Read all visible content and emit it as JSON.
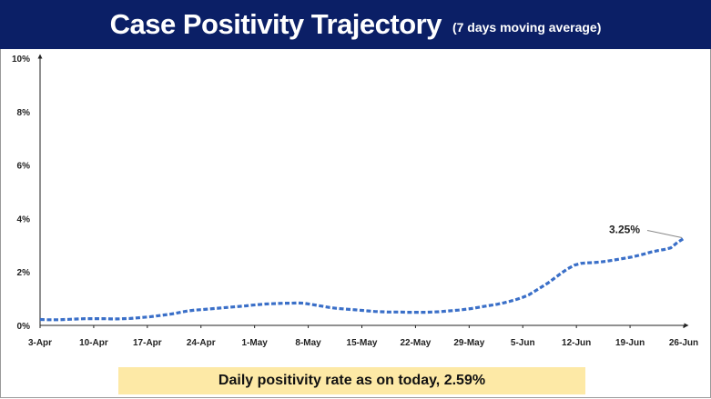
{
  "header": {
    "title": "Case Positivity Trajectory",
    "subtitle": "(7 days moving average)",
    "bg_color": "#0b1f66"
  },
  "chart_data": {
    "type": "line",
    "title": "Case Positivity Trajectory",
    "subtitle": "(7 days moving average)",
    "xlabel": "",
    "ylabel": "",
    "ylim": [
      0,
      10
    ],
    "y_ticks": [
      "0%",
      "2%",
      "4%",
      "6%",
      "8%",
      "10%"
    ],
    "x_ticks": [
      "3-Apr",
      "10-Apr",
      "17-Apr",
      "24-Apr",
      "1-May",
      "8-May",
      "15-May",
      "22-May",
      "29-May",
      "5-Jun",
      "12-Jun",
      "19-Jun",
      "26-Jun"
    ],
    "grid": false,
    "line_color": "#3a6fc8",
    "line_style": "dashed",
    "series": [
      {
        "values": [
          0.22,
          0.21,
          0.21,
          0.21,
          0.22,
          0.23,
          0.24,
          0.25,
          0.25,
          0.25,
          0.25,
          0.24,
          0.24,
          0.25,
          0.26,
          0.28,
          0.3,
          0.32,
          0.35,
          0.38,
          0.41,
          0.45,
          0.5,
          0.54,
          0.57,
          0.59,
          0.61,
          0.63,
          0.65,
          0.67,
          0.69,
          0.71,
          0.73,
          0.76,
          0.78,
          0.8,
          0.81,
          0.82,
          0.83,
          0.83,
          0.84,
          0.83,
          0.79,
          0.75,
          0.71,
          0.67,
          0.64,
          0.62,
          0.6,
          0.58,
          0.56,
          0.54,
          0.52,
          0.51,
          0.5,
          0.5,
          0.5,
          0.49,
          0.49,
          0.49,
          0.49,
          0.5,
          0.51,
          0.53,
          0.55,
          0.57,
          0.6,
          0.63,
          0.67,
          0.71,
          0.75,
          0.79,
          0.84,
          0.9,
          0.97,
          1.05,
          1.15,
          1.3,
          1.45,
          1.6,
          1.78,
          1.96,
          2.12,
          2.25,
          2.32,
          2.34,
          2.35,
          2.37,
          2.4,
          2.44,
          2.48,
          2.52,
          2.56,
          2.62,
          2.68,
          2.75,
          2.8,
          2.84,
          2.9,
          3.1,
          3.25
        ]
      }
    ],
    "annotation": {
      "label": "3.25%",
      "value": 3.25
    }
  },
  "footer": {
    "note": "Daily positivity rate as on today, 2.59%",
    "note_bg": "#fde9a6"
  }
}
